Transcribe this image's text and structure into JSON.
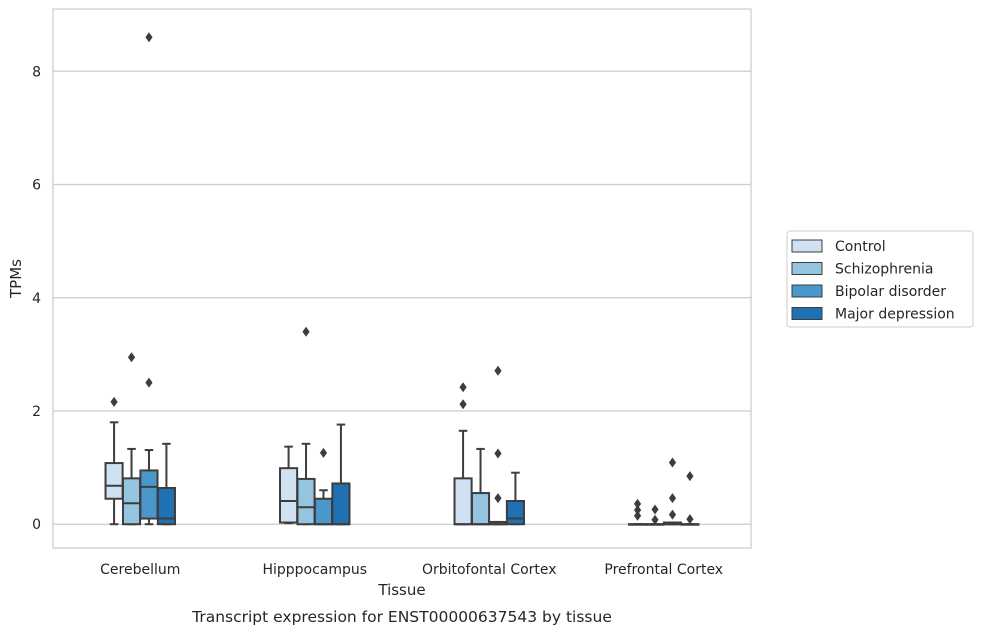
{
  "chart_data": {
    "type": "box",
    "title": "",
    "caption": "Transcript expression for ENST00000637543 by tissue",
    "xlabel": "Tissue",
    "ylabel": "TPMs",
    "ylim": [
      -0.42,
      9.1
    ],
    "yticks": [
      0,
      2,
      4,
      6,
      8
    ],
    "grid": "horizontal",
    "legend_position": "right",
    "categories": [
      "Cerebellum",
      "Hipppocampus",
      "Orbitofontal Cortex",
      "Prefrontal Cortex"
    ],
    "series": [
      {
        "name": "Control",
        "color": "#d0e1f2",
        "boxes": [
          {
            "whisker_low": 0.0,
            "q1": 0.45,
            "median": 0.68,
            "q3": 1.08,
            "whisker_high": 1.8,
            "outliers": [
              2.16
            ]
          },
          {
            "whisker_low": 0.02,
            "q1": 0.03,
            "median": 0.41,
            "q3": 0.99,
            "whisker_high": 1.37,
            "outliers": []
          },
          {
            "whisker_low": 0.0,
            "q1": 0.0,
            "median": 0.0,
            "q3": 0.81,
            "whisker_high": 1.65,
            "outliers": [
              2.12,
              2.42
            ]
          },
          {
            "whisker_low": 0.0,
            "q1": 0.0,
            "median": 0.0,
            "q3": 0.0,
            "whisker_high": 0.0,
            "outliers": [
              0.15,
              0.25,
              0.36
            ]
          }
        ]
      },
      {
        "name": "Schizophrenia",
        "color": "#94c4df",
        "boxes": [
          {
            "whisker_low": 0.0,
            "q1": 0.0,
            "median": 0.37,
            "q3": 0.81,
            "whisker_high": 1.33,
            "outliers": [
              2.95
            ]
          },
          {
            "whisker_low": 0.0,
            "q1": 0.0,
            "median": 0.3,
            "q3": 0.8,
            "whisker_high": 1.42,
            "outliers": [
              3.4
            ]
          },
          {
            "whisker_low": 0.0,
            "q1": 0.0,
            "median": 0.0,
            "q3": 0.55,
            "whisker_high": 1.33,
            "outliers": []
          },
          {
            "whisker_low": 0.0,
            "q1": 0.0,
            "median": 0.0,
            "q3": 0.0,
            "whisker_high": 0.0,
            "outliers": [
              0.08,
              0.26
            ]
          }
        ]
      },
      {
        "name": "Bipolar disorder",
        "color": "#4a98c9",
        "boxes": [
          {
            "whisker_low": 0.0,
            "q1": 0.1,
            "median": 0.66,
            "q3": 0.95,
            "whisker_high": 1.31,
            "outliers": [
              2.5,
              8.6
            ]
          },
          {
            "whisker_low": 0.0,
            "q1": 0.0,
            "median": 0.0,
            "q3": 0.45,
            "whisker_high": 0.6,
            "outliers": [
              1.26
            ]
          },
          {
            "whisker_low": 0.0,
            "q1": 0.0,
            "median": 0.0,
            "q3": 0.04,
            "whisker_high": 0.04,
            "outliers": [
              0.46,
              1.25,
              2.71
            ]
          },
          {
            "whisker_low": 0.0,
            "q1": 0.0,
            "median": 0.0,
            "q3": 0.03,
            "whisker_high": 0.03,
            "outliers": [
              0.17,
              0.46,
              1.09
            ]
          }
        ]
      },
      {
        "name": "Major depression",
        "color": "#2070b4",
        "boxes": [
          {
            "whisker_low": 0.0,
            "q1": 0.0,
            "median": 0.1,
            "q3": 0.64,
            "whisker_high": 1.42,
            "outliers": []
          },
          {
            "whisker_low": 0.0,
            "q1": 0.0,
            "median": 0.0,
            "q3": 0.72,
            "whisker_high": 1.76,
            "outliers": []
          },
          {
            "whisker_low": 0.0,
            "q1": 0.0,
            "median": 0.1,
            "q3": 0.41,
            "whisker_high": 0.91,
            "outliers": []
          },
          {
            "whisker_low": 0.0,
            "q1": 0.0,
            "median": 0.0,
            "q3": 0.0,
            "whisker_high": 0.0,
            "outliers": [
              0.09,
              0.85
            ]
          }
        ]
      }
    ]
  }
}
